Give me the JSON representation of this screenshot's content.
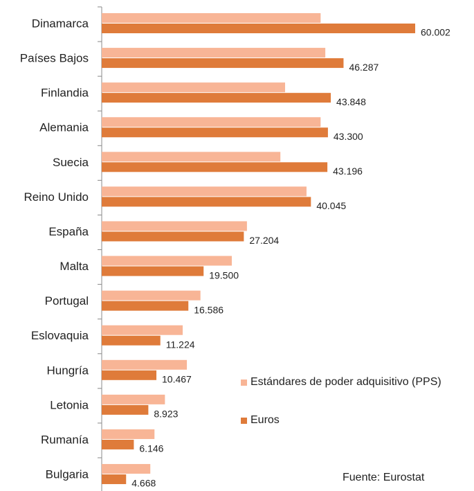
{
  "chart_data": {
    "type": "hbar",
    "categories": [
      "Dinamarca",
      "Países Bajos",
      "Finlandia",
      "Alemania",
      "Suecia",
      "Reino Unido",
      "España",
      "Malta",
      "Portugal",
      "Eslovaquia",
      "Hungría",
      "Letonia",
      "Rumanía",
      "Bulgaria"
    ],
    "series": [
      {
        "name": "Estándares de poder adquisitivo (PPS)",
        "color": "#f8b596",
        "values": [
          41900,
          42800,
          35100,
          41900,
          34200,
          39200,
          27800,
          24900,
          18900,
          15500,
          16300,
          12100,
          10100,
          9300
        ]
      },
      {
        "name": "Euros",
        "color": "#df7b3a",
        "values": [
          60002,
          46287,
          43848,
          43300,
          43196,
          40045,
          27204,
          19500,
          16586,
          11224,
          10467,
          8923,
          6146,
          4668
        ],
        "value_labels": [
          "60.002",
          "46.287",
          "43.848",
          "43.300",
          "43.196",
          "40.045",
          "27.204",
          "19.500",
          "16.586",
          "11.224",
          "10.467",
          "8.923",
          "6.146",
          "4.668"
        ]
      }
    ],
    "legend": "lower right",
    "source": "Fuente: Eurostat"
  }
}
